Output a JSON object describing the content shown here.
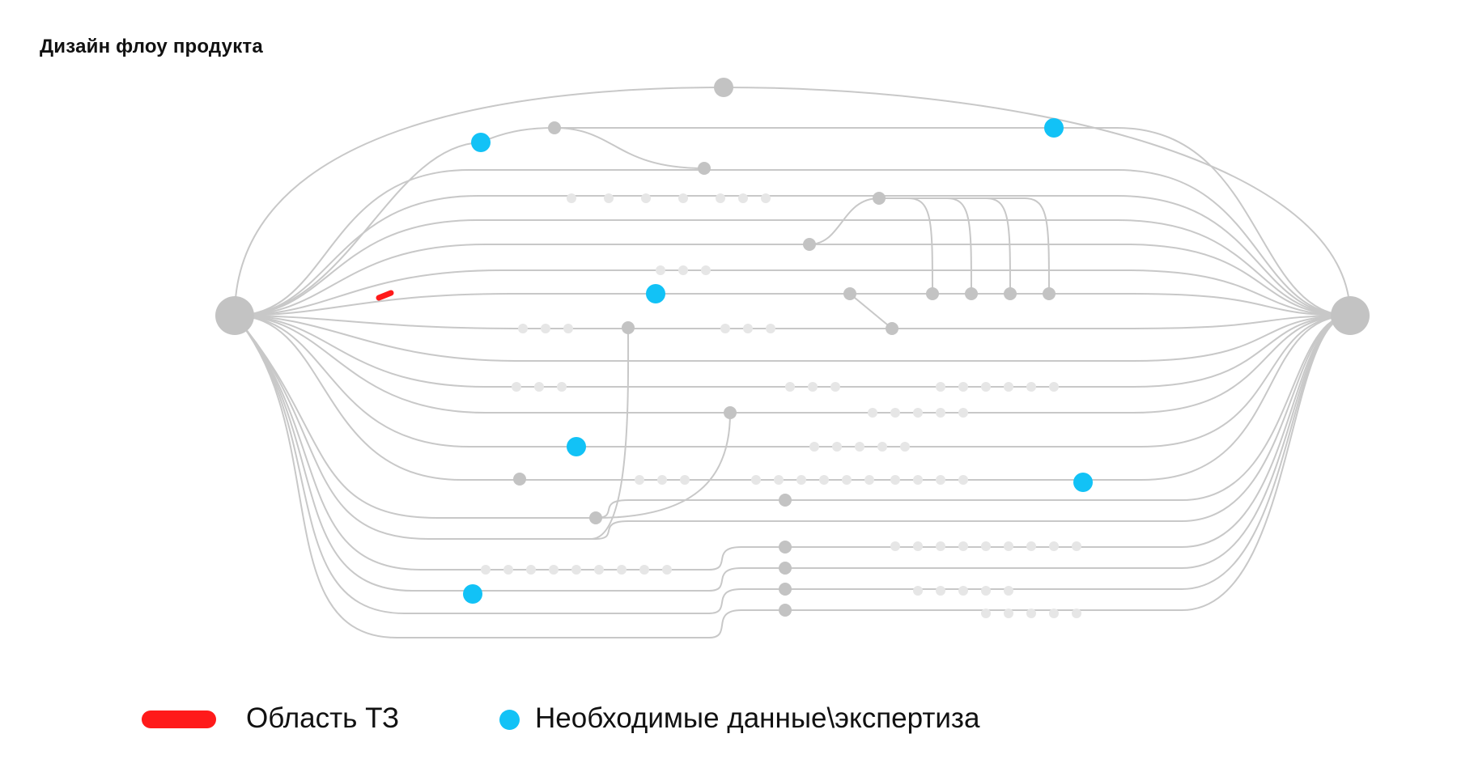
{
  "title": "Дизайн флоу продукта",
  "colors": {
    "line": "#c8c8c8",
    "node": "#c3c3c3",
    "ghost": "#e6e6e6",
    "data": "#12c2f6",
    "tz": "#ff1a1a"
  },
  "legend": {
    "tz_label": "Область ТЗ",
    "data_label": "Необходимые данные\\экспертиза"
  }
}
